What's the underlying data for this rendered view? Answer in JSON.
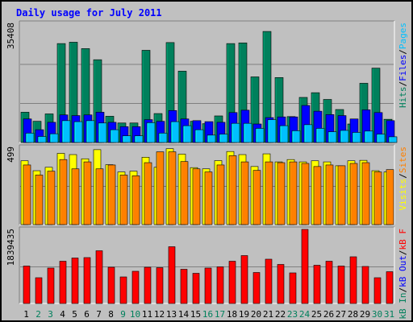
{
  "title": "Daily usage for July 2011",
  "colors": {
    "background": "#c0c0c0",
    "plot": "#c0c0c0",
    "title": "#0000ff",
    "hits": "#00805c",
    "files": "#0000ff",
    "pages": "#00c0ff",
    "visits": "#ffff00",
    "sites": "#ff8000",
    "kbin": "#00805c",
    "kbout": "#0000ff",
    "kbf": "#ff0000",
    "weekend_label": "#00805c",
    "weekday_label": "#000000"
  },
  "chart_data": [
    {
      "type": "bar",
      "panel": "top",
      "categories": [
        "1",
        "2",
        "3",
        "4",
        "5",
        "6",
        "7",
        "8",
        "9",
        "10",
        "11",
        "12",
        "13",
        "14",
        "15",
        "16",
        "17",
        "18",
        "19",
        "20",
        "21",
        "22",
        "23",
        "24",
        "25",
        "26",
        "27",
        "28",
        "29",
        "30",
        "31"
      ],
      "weekend_days": [
        "2",
        "3",
        "9",
        "10",
        "16",
        "17",
        "23",
        "24",
        "30",
        "31"
      ],
      "ymax_label": "35408",
      "ylim": [
        0,
        35408
      ],
      "series": [
        {
          "name": "Hits",
          "color_key": "hits",
          "values": [
            9000,
            6300,
            8500,
            29400,
            29800,
            27900,
            24600,
            7800,
            5800,
            5800,
            27400,
            8600,
            29700,
            21200,
            6300,
            5600,
            7900,
            29400,
            29600,
            19500,
            33000,
            19300,
            7700,
            13400,
            14800,
            12800,
            9800,
            5500,
            17600,
            22100,
            6900
          ]
        },
        {
          "name": "Files",
          "color_key": "files",
          "values": [
            7000,
            3800,
            6000,
            8200,
            8000,
            8200,
            9000,
            6000,
            4700,
            4700,
            6800,
            6300,
            9500,
            7000,
            6500,
            6200,
            6000,
            8900,
            9600,
            5500,
            7400,
            7600,
            7600,
            11000,
            9300,
            8300,
            8000,
            7000,
            9700,
            8900,
            6500
          ]
        },
        {
          "name": "Pages",
          "color_key": "pages",
          "values": [
            2800,
            1800,
            2600,
            6500,
            6200,
            6500,
            5800,
            3800,
            2000,
            2000,
            5900,
            2800,
            6200,
            5000,
            3800,
            2200,
            2500,
            5700,
            5700,
            4200,
            6800,
            5000,
            3500,
            5300,
            4200,
            3200,
            3600,
            3000,
            3400,
            2500,
            1700
          ]
        }
      ],
      "legend": [
        "Pages",
        "Files",
        "Hits"
      ]
    },
    {
      "type": "bar",
      "panel": "middle",
      "categories": [
        "1",
        "2",
        "3",
        "4",
        "5",
        "6",
        "7",
        "8",
        "9",
        "10",
        "11",
        "12",
        "13",
        "14",
        "15",
        "16",
        "17",
        "18",
        "19",
        "20",
        "21",
        "22",
        "23",
        "24",
        "25",
        "26",
        "27",
        "28",
        "29",
        "30",
        "31"
      ],
      "ymax_label": "499",
      "ylim": [
        0,
        499
      ],
      "series": [
        {
          "name": "Visits",
          "color_key": "visits",
          "values": [
            412,
            348,
            370,
            460,
            452,
            425,
            484,
            387,
            340,
            345,
            435,
            370,
            490,
            455,
            368,
            360,
            413,
            472,
            452,
            375,
            457,
            405,
            420,
            405,
            412,
            405,
            380,
            412,
            415,
            348,
            340
          ]
        },
        {
          "name": "Sites",
          "color_key": "sites",
          "values": [
            385,
            320,
            345,
            420,
            360,
            405,
            360,
            385,
            320,
            315,
            400,
            470,
            470,
            407,
            360,
            340,
            385,
            445,
            405,
            350,
            405,
            400,
            405,
            395,
            375,
            385,
            380,
            395,
            400,
            340,
            355
          ]
        }
      ],
      "legend": [
        "Sites",
        "Visits"
      ]
    },
    {
      "type": "bar",
      "panel": "bottom",
      "categories": [
        "1",
        "2",
        "3",
        "4",
        "5",
        "6",
        "7",
        "8",
        "9",
        "10",
        "11",
        "12",
        "13",
        "14",
        "15",
        "16",
        "17",
        "18",
        "19",
        "20",
        "21",
        "22",
        "23",
        "24",
        "25",
        "26",
        "27",
        "28",
        "29",
        "30",
        "31"
      ],
      "ymax_label": "1839435",
      "ylim": [
        0,
        1839435
      ],
      "series": [
        {
          "name": "kB F",
          "color_key": "kbf",
          "values": [
            930000,
            640000,
            880000,
            1050000,
            1130000,
            1140000,
            1310000,
            900000,
            660000,
            800000,
            900000,
            890000,
            1410000,
            850000,
            750000,
            880000,
            910000,
            1050000,
            1190000,
            770000,
            1100000,
            970000,
            760000,
            1840000,
            950000,
            1050000,
            930000,
            1160000,
            920000,
            640000,
            790000
          ]
        }
      ],
      "legend": [
        "kB F",
        "kB Out",
        "kB In"
      ]
    }
  ]
}
